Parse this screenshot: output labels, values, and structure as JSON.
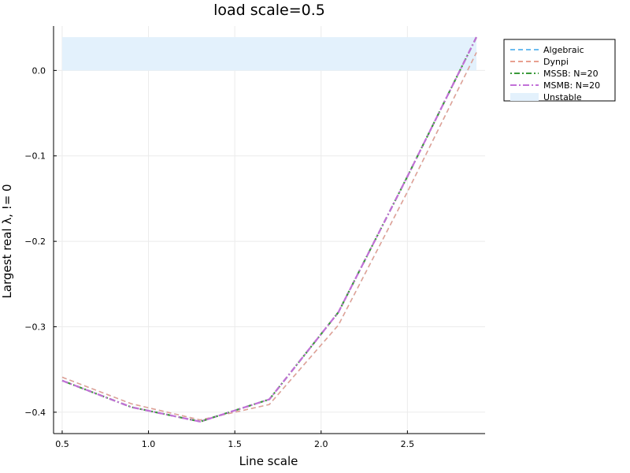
{
  "chart_data": {
    "type": "line",
    "title": "load scale=0.5",
    "xlabel": "Line scale",
    "ylabel": "Largest real λ, != 0",
    "xlim": [
      0.45,
      2.95
    ],
    "ylim": [
      -0.425,
      0.052
    ],
    "x_ticks": [
      {
        "value": 0.5,
        "label": "0.5"
      },
      {
        "value": 1.0,
        "label": "1.0"
      },
      {
        "value": 1.5,
        "label": "1.5"
      },
      {
        "value": 2.0,
        "label": "2.0"
      },
      {
        "value": 2.5,
        "label": "2.5"
      }
    ],
    "y_ticks": [
      {
        "value": 0.0,
        "label": "0.0"
      },
      {
        "value": -0.1,
        "label": "−0.1"
      },
      {
        "value": -0.2,
        "label": "−0.2"
      },
      {
        "value": -0.3,
        "label": "−0.3"
      },
      {
        "value": -0.4,
        "label": "−0.4"
      }
    ],
    "grid": true,
    "legend_position": "top-right (outside plot)",
    "unstable_region": {
      "y_min": 0.0,
      "y_max": 0.039,
      "x_min": 0.5,
      "x_max": 2.9,
      "color": "#e3f1fc"
    },
    "series": [
      {
        "name": "Algebraic",
        "color": "#6bbcf0",
        "dash": "dashed",
        "width": 1.5,
        "x": [
          0.5,
          0.9,
          1.3,
          1.7,
          2.1,
          2.5,
          2.9
        ],
        "y": [
          -0.359,
          -0.39,
          -0.409,
          -0.391,
          -0.298,
          -0.142,
          0.021
        ]
      },
      {
        "name": "Dynpi",
        "color": "#e8a090",
        "dash": "dashed",
        "width": 1.5,
        "x": [
          0.5,
          0.9,
          1.3,
          1.7,
          2.1,
          2.5,
          2.9
        ],
        "y": [
          -0.359,
          -0.39,
          -0.409,
          -0.391,
          -0.298,
          -0.142,
          0.021
        ]
      },
      {
        "name": "MSSB: N=20",
        "color": "#3a9a3a",
        "dash": "dotdash",
        "width": 2.2,
        "x": [
          0.5,
          0.9,
          1.3,
          1.7,
          2.1,
          2.5,
          2.9
        ],
        "y": [
          -0.363,
          -0.394,
          -0.411,
          -0.385,
          -0.283,
          -0.124,
          0.039
        ]
      },
      {
        "name": "MSMB: N=20",
        "color": "#c270d8",
        "dash": "dashdot",
        "width": 2.2,
        "x": [
          0.5,
          0.9,
          1.3,
          1.7,
          2.1,
          2.5,
          2.9
        ],
        "y": [
          -0.363,
          -0.394,
          -0.411,
          -0.385,
          -0.283,
          -0.124,
          0.039
        ]
      }
    ],
    "legend": [
      {
        "label": "Algebraic",
        "kind": "line",
        "color": "#6bbcf0",
        "dash": "dashed"
      },
      {
        "label": "Dynpi",
        "kind": "line",
        "color": "#e8a090",
        "dash": "dashed"
      },
      {
        "label": "MSSB: N=20",
        "kind": "line",
        "color": "#3a9a3a",
        "dash": "dotdash"
      },
      {
        "label": "MSMB: N=20",
        "kind": "line",
        "color": "#c270d8",
        "dash": "dashdot"
      },
      {
        "label": "Unstable",
        "kind": "patch",
        "color": "#e3f1fc"
      }
    ]
  }
}
